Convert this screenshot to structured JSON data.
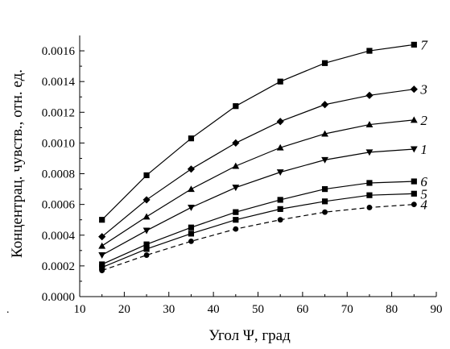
{
  "chart_data": {
    "type": "line",
    "title": "",
    "xlabel": "Угол Ψ,  град",
    "ylabel": "Концентрац. чувств.,  отн. ед.",
    "xlim": [
      10,
      90
    ],
    "ylim": [
      0.0,
      0.0017
    ],
    "x_ticks": [
      10,
      20,
      30,
      40,
      50,
      60,
      70,
      80,
      90
    ],
    "x_tick_labels": [
      "10",
      "20",
      "30",
      "40",
      "50",
      "60",
      "70",
      "80",
      "90"
    ],
    "y_ticks": [
      0.0,
      0.0002,
      0.0004,
      0.0006,
      0.0008,
      0.001,
      0.0012,
      0.0014,
      0.0016
    ],
    "y_tick_labels": [
      "0.0000",
      "0.0002",
      "0.0004",
      "0.0006",
      "0.0008",
      "0.0010",
      "0.0012",
      "0.0014",
      "0.0016"
    ],
    "grid": false,
    "x": [
      15,
      25,
      35,
      45,
      55,
      65,
      75,
      85
    ],
    "series": [
      {
        "name": "7",
        "marker": "square",
        "dash": false,
        "values": [
          0.0005,
          0.00079,
          0.00103,
          0.00124,
          0.0014,
          0.00152,
          0.0016,
          0.00164
        ]
      },
      {
        "name": "3",
        "marker": "diamond",
        "dash": false,
        "values": [
          0.00039,
          0.00063,
          0.00083,
          0.001,
          0.00114,
          0.00125,
          0.00131,
          0.00135
        ]
      },
      {
        "name": "2",
        "marker": "triangle-up",
        "dash": false,
        "values": [
          0.00033,
          0.00052,
          0.0007,
          0.00085,
          0.00097,
          0.00106,
          0.00112,
          0.00115
        ]
      },
      {
        "name": "1",
        "marker": "triangle-down",
        "dash": false,
        "values": [
          0.00027,
          0.00043,
          0.00058,
          0.00071,
          0.00081,
          0.00089,
          0.00094,
          0.00096
        ]
      },
      {
        "name": "6",
        "marker": "square",
        "dash": false,
        "values": [
          0.00021,
          0.00034,
          0.00045,
          0.00055,
          0.00063,
          0.0007,
          0.00074,
          0.00075
        ]
      },
      {
        "name": "5",
        "marker": "square",
        "dash": false,
        "values": [
          0.00019,
          0.00031,
          0.00041,
          0.0005,
          0.00057,
          0.00062,
          0.00066,
          0.00067
        ]
      },
      {
        "name": "4",
        "marker": "circle",
        "dash": true,
        "values": [
          0.00017,
          0.00027,
          0.00036,
          0.00044,
          0.0005,
          0.00055,
          0.00058,
          0.0006
        ]
      }
    ],
    "stray_mark": "."
  }
}
